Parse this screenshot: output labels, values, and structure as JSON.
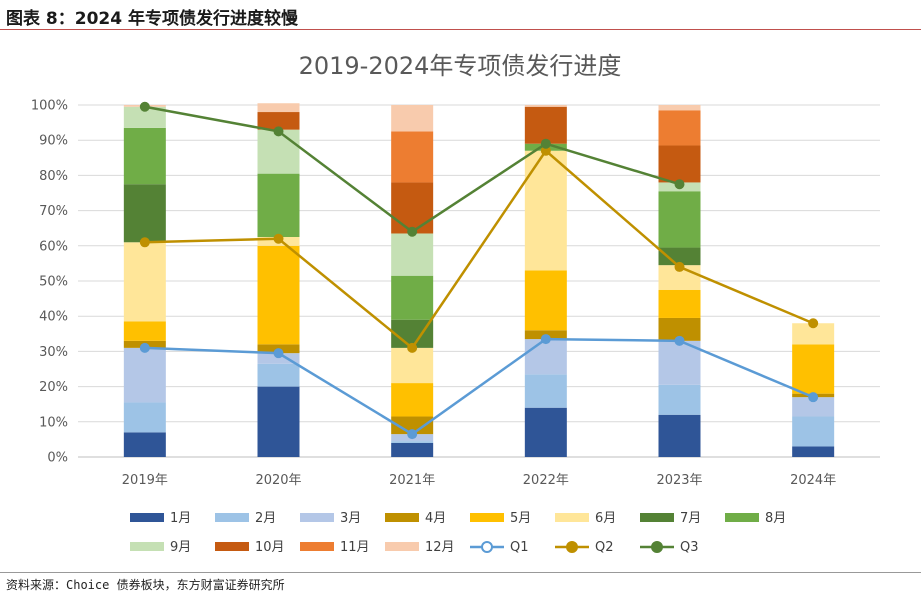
{
  "header": {
    "figure_title": "图表 8：2024 年专项债发行进度较慢"
  },
  "footer": {
    "source": "资料来源：Choice 债券板块，东方财富证券研究所"
  },
  "chart_data": {
    "type": "bar",
    "stacked": true,
    "title": "2019-2024年专项债发行进度",
    "categories": [
      "2019年",
      "2020年",
      "2021年",
      "2022年",
      "2023年",
      "2024年"
    ],
    "ylim": [
      0,
      100
    ],
    "yticks": [
      "0%",
      "10%",
      "20%",
      "30%",
      "40%",
      "50%",
      "60%",
      "70%",
      "80%",
      "90%",
      "100%"
    ],
    "grid": true,
    "legend_position": "bottom",
    "series": [
      {
        "name": "1月",
        "color": "#2f5597",
        "values": [
          7,
          20,
          4,
          14,
          12,
          3
        ]
      },
      {
        "name": "2月",
        "color": "#9dc3e6",
        "values": [
          8.5,
          6.5,
          0.5,
          9.5,
          8.5,
          8.5
        ]
      },
      {
        "name": "3月",
        "color": "#b4c7e7",
        "values": [
          15.5,
          3,
          2,
          10,
          12.5,
          5.5
        ]
      },
      {
        "name": "4月",
        "color": "#bf9000",
        "values": [
          2,
          2.5,
          5,
          2.5,
          6.5,
          1
        ]
      },
      {
        "name": "5月",
        "color": "#ffc000",
        "values": [
          5.5,
          28,
          9.5,
          17,
          8,
          14
        ]
      },
      {
        "name": "6月",
        "color": "#ffe699",
        "values": [
          22.5,
          2.5,
          10,
          34,
          7,
          6
        ]
      },
      {
        "name": "7月",
        "color": "#548235",
        "values": [
          16.5,
          0,
          8,
          0,
          5,
          0
        ]
      },
      {
        "name": "8月",
        "color": "#70ad47",
        "values": [
          16,
          18,
          12.5,
          2,
          16,
          0
        ]
      },
      {
        "name": "9月",
        "color": "#c5e0b4",
        "values": [
          6,
          12.5,
          12,
          0,
          2.5,
          0
        ]
      },
      {
        "name": "10月",
        "color": "#c55a11",
        "values": [
          0,
          5,
          14.5,
          10.5,
          10.5,
          0
        ]
      },
      {
        "name": "11月",
        "color": "#ed7d31",
        "values": [
          0,
          0,
          14.5,
          0,
          10,
          0
        ]
      },
      {
        "name": "12月",
        "color": "#f8cbad",
        "values": [
          0.5,
          2.5,
          7.5,
          0.5,
          1.5,
          0
        ]
      }
    ],
    "lines": [
      {
        "name": "Q1",
        "color": "#5b9bd5",
        "values": [
          31,
          29.5,
          6.5,
          33.5,
          33,
          17
        ]
      },
      {
        "name": "Q2",
        "color": "#bf9000",
        "values": [
          61,
          62,
          31,
          87,
          54,
          38
        ]
      },
      {
        "name": "Q3",
        "color": "#548235",
        "values": [
          99.5,
          92.5,
          64,
          89,
          77.5,
          null
        ]
      }
    ]
  }
}
